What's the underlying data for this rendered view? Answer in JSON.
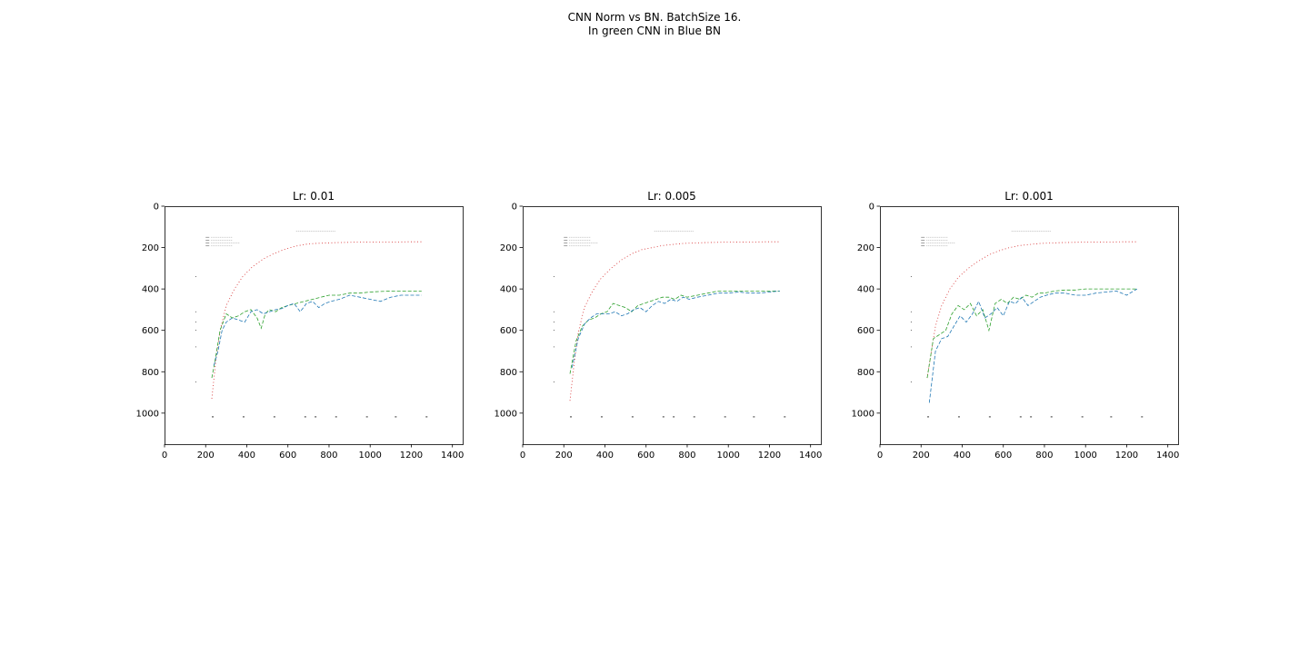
{
  "figure": {
    "title_line1": "CNN Norm vs BN. BatchSize 16.",
    "title_line2": "In green CNN in Blue BN"
  },
  "colors": {
    "red": "#d62728",
    "green": "#2ca02c",
    "blue": "#1f77b4",
    "ink": "#000000"
  },
  "chart_data": [
    {
      "type": "line",
      "title": "Lr: 0.01",
      "xlabel": "",
      "ylabel": "",
      "xlim": [
        0,
        1450
      ],
      "ylim": [
        1150,
        0
      ],
      "y_inverted": true,
      "xticks": [
        "0",
        "200",
        "400",
        "600",
        "800",
        "1000",
        "1200",
        "1400"
      ],
      "yticks": [
        "0",
        "200",
        "400",
        "600",
        "800",
        "1000"
      ],
      "series": [
        {
          "color": "red",
          "style": "dotted",
          "x": [
            230,
            250,
            270,
            300,
            340,
            380,
            430,
            480,
            530,
            580,
            630,
            680,
            730,
            780,
            830,
            880,
            930,
            980,
            1030,
            1080,
            1130,
            1180,
            1250
          ],
          "y": [
            930,
            740,
            600,
            480,
            400,
            340,
            290,
            255,
            230,
            210,
            195,
            185,
            180,
            178,
            176,
            175,
            174,
            174,
            173,
            173,
            173,
            172,
            172
          ]
        },
        {
          "color": "green",
          "style": "dashed",
          "x": [
            230,
            250,
            270,
            300,
            330,
            360,
            390,
            420,
            450,
            470,
            490,
            510,
            540,
            570,
            600,
            640,
            680,
            720,
            760,
            800,
            850,
            900,
            950,
            1000,
            1050,
            1100,
            1150,
            1200,
            1250
          ],
          "y": [
            830,
            720,
            600,
            520,
            540,
            530,
            510,
            500,
            540,
            590,
            520,
            500,
            510,
            490,
            480,
            470,
            460,
            450,
            440,
            430,
            430,
            420,
            420,
            415,
            412,
            410,
            410,
            410,
            410
          ]
        },
        {
          "color": "blue",
          "style": "dashed",
          "x": [
            240,
            260,
            280,
            300,
            330,
            360,
            390,
            420,
            450,
            480,
            510,
            540,
            570,
            600,
            630,
            660,
            690,
            720,
            750,
            780,
            810,
            850,
            900,
            950,
            1000,
            1050,
            1100,
            1150,
            1200,
            1250
          ],
          "y": [
            770,
            700,
            600,
            560,
            540,
            550,
            560,
            510,
            500,
            520,
            510,
            500,
            495,
            480,
            470,
            510,
            470,
            460,
            490,
            470,
            460,
            450,
            430,
            440,
            450,
            460,
            440,
            430,
            430,
            430
          ]
        }
      ],
      "annotations": {
        "legend_position": "upper-left",
        "note_position": "top-center"
      }
    },
    {
      "type": "line",
      "title": "Lr: 0.005",
      "xlabel": "",
      "ylabel": "",
      "xlim": [
        0,
        1450
      ],
      "ylim": [
        1150,
        0
      ],
      "y_inverted": true,
      "xticks": [
        "0",
        "200",
        "400",
        "600",
        "800",
        "1000",
        "1200",
        "1400"
      ],
      "yticks": [
        "0",
        "200",
        "400",
        "600",
        "800",
        "1000"
      ],
      "series": [
        {
          "color": "red",
          "style": "dotted",
          "x": [
            230,
            250,
            270,
            300,
            340,
            380,
            430,
            480,
            530,
            580,
            630,
            680,
            730,
            780,
            830,
            880,
            930,
            980,
            1030,
            1080,
            1130,
            1180,
            1250
          ],
          "y": [
            940,
            760,
            610,
            490,
            410,
            350,
            300,
            260,
            230,
            210,
            200,
            190,
            185,
            180,
            178,
            176,
            175,
            174,
            174,
            173,
            173,
            172,
            172
          ]
        },
        {
          "color": "green",
          "style": "dashed",
          "x": [
            230,
            260,
            290,
            320,
            350,
            380,
            410,
            440,
            470,
            500,
            530,
            560,
            590,
            620,
            650,
            680,
            710,
            740,
            770,
            800,
            850,
            900,
            950,
            1000,
            1050,
            1100,
            1150,
            1200,
            1250
          ],
          "y": [
            810,
            650,
            580,
            550,
            540,
            520,
            510,
            470,
            480,
            490,
            510,
            480,
            470,
            460,
            450,
            440,
            440,
            450,
            430,
            440,
            430,
            420,
            410,
            410,
            410,
            410,
            410,
            410,
            410
          ]
        },
        {
          "color": "blue",
          "style": "dashed",
          "x": [
            240,
            270,
            300,
            330,
            360,
            390,
            420,
            450,
            480,
            510,
            540,
            570,
            600,
            630,
            660,
            690,
            720,
            750,
            780,
            810,
            850,
            900,
            950,
            1000,
            1050,
            1100,
            1150,
            1200,
            1250
          ],
          "y": [
            780,
            640,
            570,
            540,
            520,
            520,
            520,
            510,
            530,
            520,
            500,
            490,
            510,
            480,
            460,
            470,
            450,
            460,
            440,
            450,
            440,
            430,
            420,
            420,
            415,
            420,
            420,
            415,
            410
          ]
        }
      ],
      "annotations": {
        "legend_position": "upper-left",
        "note_position": "top-center"
      }
    },
    {
      "type": "line",
      "title": "Lr: 0.001",
      "xlabel": "",
      "ylabel": "",
      "xlim": [
        0,
        1450
      ],
      "ylim": [
        1150,
        0
      ],
      "y_inverted": true,
      "xticks": [
        "0",
        "200",
        "400",
        "600",
        "800",
        "1000",
        "1200",
        "1400"
      ],
      "yticks": [
        "0",
        "200",
        "400",
        "600",
        "800",
        "1000"
      ],
      "series": [
        {
          "color": "red",
          "style": "dotted",
          "x": [
            230,
            250,
            270,
            300,
            340,
            380,
            430,
            480,
            530,
            580,
            630,
            680,
            730,
            780,
            830,
            880,
            930,
            980,
            1030,
            1080,
            1130,
            1180,
            1250
          ],
          "y": [
            830,
            700,
            580,
            480,
            400,
            345,
            300,
            265,
            235,
            215,
            200,
            190,
            185,
            180,
            178,
            176,
            175,
            174,
            174,
            173,
            173,
            172,
            172
          ]
        },
        {
          "color": "green",
          "style": "dashed",
          "x": [
            230,
            260,
            290,
            320,
            350,
            380,
            410,
            440,
            470,
            500,
            530,
            560,
            590,
            620,
            650,
            680,
            710,
            740,
            770,
            800,
            850,
            900,
            950,
            1000,
            1050,
            1100,
            1150,
            1200,
            1250
          ],
          "y": [
            830,
            640,
            620,
            600,
            520,
            480,
            500,
            470,
            530,
            500,
            600,
            470,
            450,
            470,
            440,
            450,
            430,
            440,
            420,
            420,
            410,
            405,
            405,
            400,
            400,
            400,
            400,
            400,
            400
          ]
        },
        {
          "color": "blue",
          "style": "dashed",
          "x": [
            240,
            270,
            300,
            330,
            360,
            390,
            420,
            450,
            480,
            510,
            540,
            570,
            600,
            630,
            660,
            690,
            720,
            750,
            780,
            810,
            850,
            900,
            950,
            1000,
            1050,
            1100,
            1150,
            1200,
            1250
          ],
          "y": [
            950,
            700,
            640,
            630,
            580,
            530,
            560,
            520,
            460,
            540,
            520,
            490,
            530,
            460,
            470,
            440,
            480,
            460,
            440,
            430,
            420,
            420,
            430,
            430,
            420,
            415,
            410,
            430,
            400
          ]
        }
      ],
      "annotations": {
        "legend_position": "upper-left",
        "note_position": "top-center"
      }
    }
  ]
}
